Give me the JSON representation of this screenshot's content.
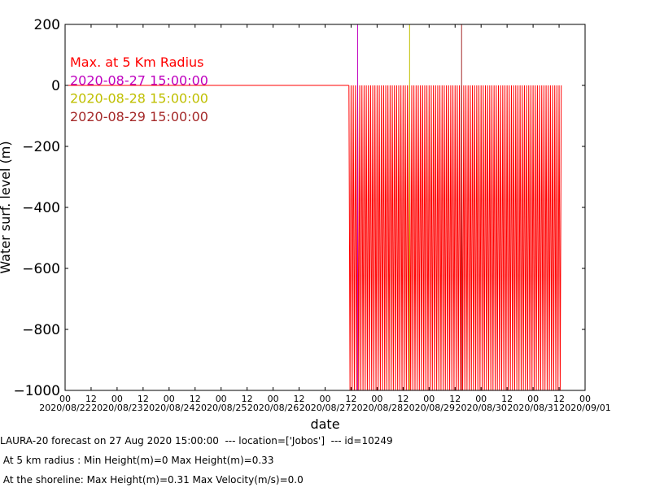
{
  "chart_data": {
    "type": "line",
    "xlabel": "date",
    "ylabel": "Water surf. level (m)",
    "ylim": [
      -1000,
      200
    ],
    "yticks": [
      200,
      0,
      -200,
      -400,
      -600,
      -800,
      -1000
    ],
    "xlim": [
      "2020-08-22 00:00",
      "2020-09-01 00:00"
    ],
    "x_tick_labels": [
      "00",
      "12",
      "00",
      "12",
      "00",
      "12",
      "00",
      "12",
      "00",
      "12",
      "00",
      "12",
      "00",
      "12",
      "00",
      "12",
      "00",
      "12",
      "00",
      "12",
      "00"
    ],
    "x_date_labels": [
      "2020/08/22",
      "2020/08/23",
      "2020/08/24",
      "2020/08/25",
      "2020/08/26",
      "2020/08/27",
      "2020/08/28",
      "2020/08/29",
      "2020/08/30",
      "2020/08/31",
      "2020/09/01"
    ],
    "series": [
      {
        "name": "Max. at 5 Km Radius",
        "color": "#ff0000",
        "flat_segment": {
          "x": [
            "2020-08-22 00:00",
            "2020-08-27 11:00"
          ],
          "y": 0
        },
        "oscillation": {
          "x": [
            "2020-08-27 11:00",
            "2020-08-31 13:00"
          ],
          "period_hours": 1,
          "y_high": 0,
          "y_low": -1000
        }
      }
    ],
    "markers": [
      {
        "label": "2020-08-27 15:00:00",
        "x": "2020-08-27 15:00",
        "color": "#bf00bf"
      },
      {
        "label": "2020-08-28 15:00:00",
        "x": "2020-08-28 15:00",
        "color": "#bfbf00"
      },
      {
        "label": "2020-08-29 15:00:00",
        "x": "2020-08-29 15:00",
        "color": "#a52a2a"
      }
    ],
    "legend_placement": "upper-left",
    "grid": false
  },
  "captions": {
    "line1": "LAURA-20 forecast on 27 Aug 2020 15:00:00  --- location=['Jobos']  --- id=10249",
    "line2": " At 5 km radius : Min Height(m)=0 Max Height(m)=0.33",
    "line3": " At the shoreline: Max Height(m)=0.31 Max Velocity(m/s)=0.0"
  }
}
